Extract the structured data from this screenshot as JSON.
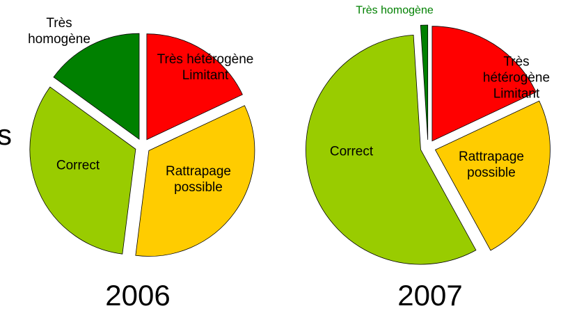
{
  "side_text": "s",
  "chart_data": [
    {
      "type": "pie",
      "title": "2006",
      "categories": [
        "Très hétérogène\nLimitant",
        "Rattrapage\npossible",
        "Correct",
        "Très\nhomogène"
      ],
      "values": [
        18,
        34,
        33,
        15
      ],
      "colors": [
        "#ff0000",
        "#ffcc00",
        "#99cc00",
        "#008000"
      ]
    },
    {
      "type": "pie",
      "title": "2007",
      "categories": [
        "Très hétérogène\nLimitant",
        "Rattrapage\npossible",
        "Correct",
        "Très homogène"
      ],
      "values": [
        18,
        24,
        57,
        1
      ],
      "colors": [
        "#ff0000",
        "#ffcc00",
        "#99cc00",
        "#008000"
      ]
    }
  ]
}
